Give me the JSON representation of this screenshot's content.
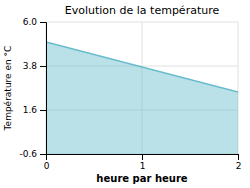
{
  "chart_data": {
    "type": "area",
    "title": "Evolution de la température",
    "x_label": "heure par heure",
    "y_label": "Température en °C",
    "x": [
      0,
      2
    ],
    "values": [
      5.0,
      2.5
    ],
    "color": "#66bbcc",
    "xlim": [
      0,
      2
    ],
    "ylim": [
      -0.6,
      6.0
    ],
    "xticks": [
      0,
      1,
      2
    ],
    "yticks": [
      -0.6,
      1.6,
      3.8,
      {
        "value": 6.0,
        "label": "6.0"
      }
    ],
    "grid": true
  }
}
